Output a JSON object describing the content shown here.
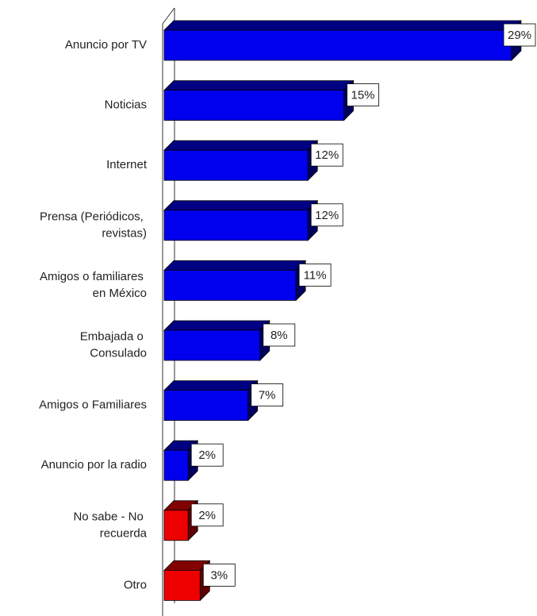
{
  "chart_data": {
    "type": "bar",
    "orientation": "horizontal",
    "categories": [
      "Anuncio por TV",
      "Noticias",
      "Internet",
      "Prensa (Periódicos,\nrevistas)",
      "Amigos o familiares\nen México",
      "Embajada o\nConsulado",
      "Amigos o Familiares",
      "Anuncio por la radio",
      "No sabe - No\nrecuerda",
      "Otro"
    ],
    "values": [
      29,
      15,
      12,
      12,
      11,
      8,
      7,
      2,
      2,
      3
    ],
    "value_labels": [
      "29%",
      "15%",
      "12%",
      "12%",
      "11%",
      "8%",
      "7%",
      "2%",
      "2%",
      "3%"
    ],
    "colors": [
      "#0000ee",
      "#0000ee",
      "#0000ee",
      "#0000ee",
      "#0000ee",
      "#0000ee",
      "#0000ee",
      "#0000ee",
      "#ee0000",
      "#ee0000"
    ]
  }
}
